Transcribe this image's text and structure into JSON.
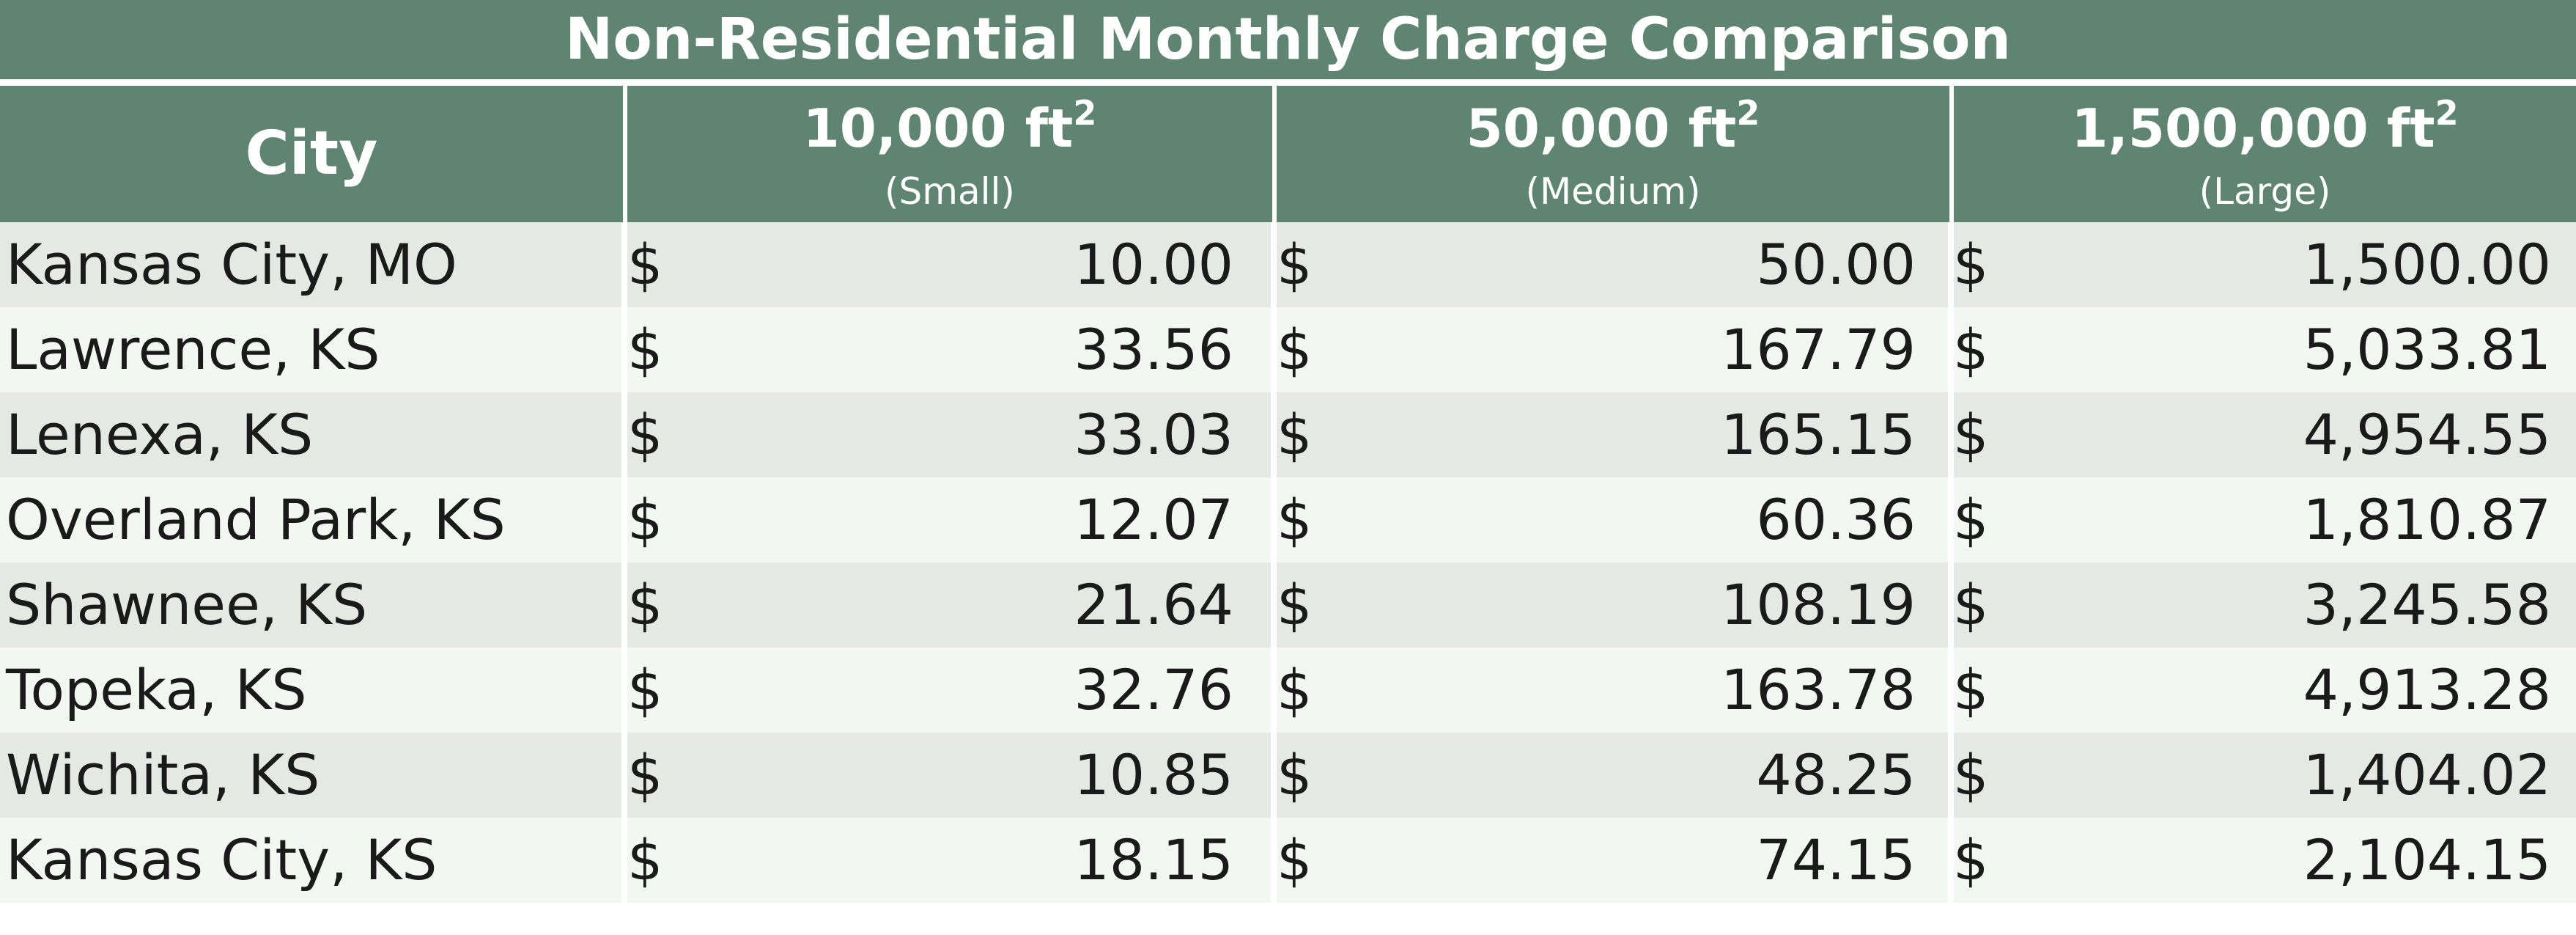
{
  "title": "Non-Residential Monthly Charge Comparison",
  "header": {
    "city": "City",
    "columns": [
      {
        "area": "10,000 ft",
        "exponent": "2",
        "size": "(Small)"
      },
      {
        "area": "50,000 ft",
        "exponent": "2",
        "size": "(Medium)"
      },
      {
        "area": "1,500,000 ft",
        "exponent": "2",
        "size": "(Large)"
      }
    ]
  },
  "currency_symbol": "$",
  "rows": [
    {
      "city": "Kansas City, MO",
      "small": "10.00",
      "medium": "50.00",
      "large": "1,500.00"
    },
    {
      "city": "Lawrence, KS",
      "small": "33.56",
      "medium": "167.79",
      "large": "5,033.81"
    },
    {
      "city": "Lenexa, KS",
      "small": "33.03",
      "medium": "165.15",
      "large": "4,954.55"
    },
    {
      "city": "Overland Park, KS",
      "small": "12.07",
      "medium": "60.36",
      "large": "1,810.87"
    },
    {
      "city": "Shawnee, KS",
      "small": "21.64",
      "medium": "108.19",
      "large": "3,245.58"
    },
    {
      "city": "Topeka, KS",
      "small": "32.76",
      "medium": "163.78",
      "large": "4,913.28"
    },
    {
      "city": "Wichita, KS",
      "small": "10.85",
      "medium": "48.25",
      "large": "1,404.02"
    },
    {
      "city": "Kansas City, KS",
      "small": "18.15",
      "medium": "74.15",
      "large": "2,104.15"
    }
  ],
  "colors": {
    "header_green": "#5f8572",
    "row_shade_a": "#e6e9e3",
    "row_shade_b": "#f3f7f1",
    "text": "#1a1a1a"
  }
}
